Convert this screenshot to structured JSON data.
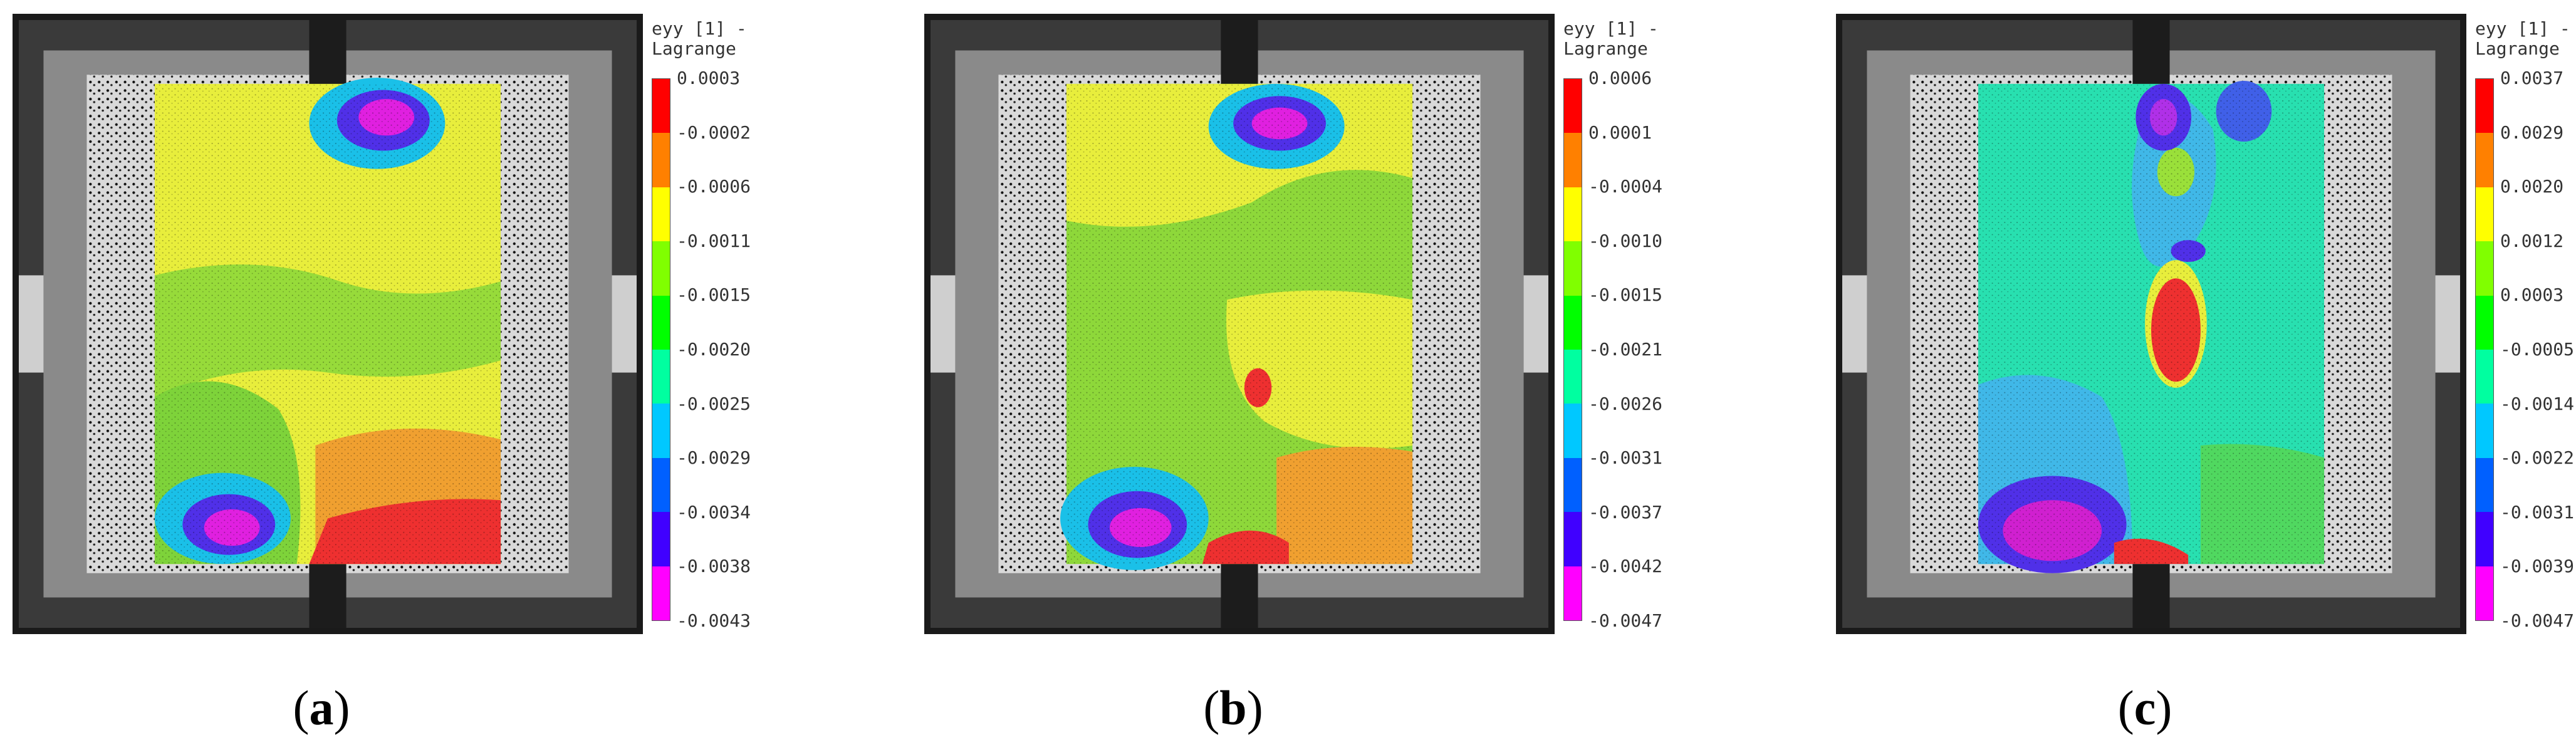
{
  "colorbar_colors": [
    "#ff0000",
    "#ff8000",
    "#ffff00",
    "#80ff00",
    "#00ff00",
    "#00ffa0",
    "#00c8ff",
    "#0060ff",
    "#4000ff",
    "#ff00ff"
  ],
  "panels": [
    {
      "id": "a",
      "caption_open": "(",
      "caption_letter": "a",
      "caption_close": ")",
      "legend_title_line1": "eyy [1] -",
      "legend_title_line2": "Lagrange",
      "ticks": [
        "0.0003",
        "-0.0002",
        "-0.0006",
        "-0.0011",
        "-0.0015",
        "-0.0020",
        "-0.0025",
        "-0.0029",
        "-0.0034",
        "-0.0038",
        "-0.0043"
      ]
    },
    {
      "id": "b",
      "caption_open": "(",
      "caption_letter": "b",
      "caption_close": ")",
      "legend_title_line1": "eyy [1] -",
      "legend_title_line2": "Lagrange",
      "ticks": [
        "0.0006",
        "0.0001",
        "-0.0004",
        "-0.0010",
        "-0.0015",
        "-0.0021",
        "-0.0026",
        "-0.0031",
        "-0.0037",
        "-0.0042",
        "-0.0047"
      ]
    },
    {
      "id": "c",
      "caption_open": "(",
      "caption_letter": "c",
      "caption_close": ")",
      "legend_title_line1": "eyy [1] -",
      "legend_title_line2": "Lagrange",
      "ticks": [
        "0.0037",
        "0.0029",
        "0.0020",
        "0.0012",
        "0.0003",
        "-0.0005",
        "-0.0014",
        "-0.0022",
        "-0.0031",
        "-0.0039",
        "-0.0047"
      ]
    }
  ]
}
